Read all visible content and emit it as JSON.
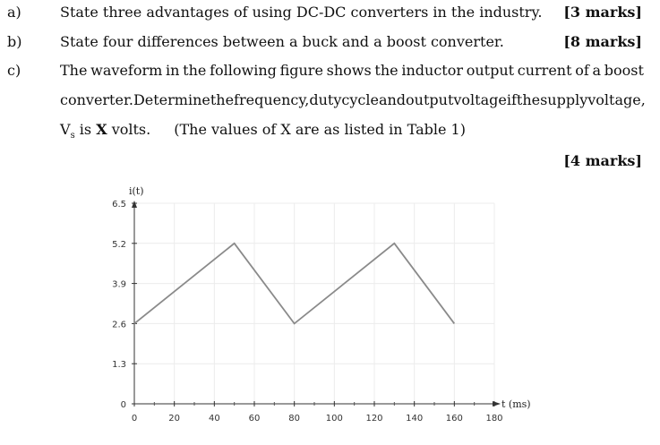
{
  "questions": [
    {
      "label": "a)",
      "text": "State three advantages of using DC-DC converters in the industry.",
      "marks": "[3 marks]"
    },
    {
      "label": "b)",
      "text": "State four differences between a buck and a boost converter.",
      "marks": "[8 marks]"
    },
    {
      "label": "c)",
      "line1": "The waveform in the following figure shows the inductor output current of a boost",
      "line2": "converter. Determine the frequency, duty cycle and output voltage if the supply voltage,",
      "line3_v": "V",
      "line3_sub": "s",
      "line3_is": " is ",
      "line3_x": "X",
      "line3_volts": " volts.",
      "line3_note": "(The values of X are as listed in Table 1)",
      "marks": "[4 marks]"
    }
  ],
  "chart_data": {
    "type": "line",
    "ylabel": "i(t)",
    "xlabel": "t (ms)",
    "x_ticks": [
      0,
      20,
      40,
      60,
      80,
      100,
      120,
      140,
      160,
      180
    ],
    "y_ticks": [
      0,
      1.3,
      2.6,
      3.9,
      5.2,
      6.5
    ],
    "xlim": [
      0,
      180
    ],
    "ylim": [
      0,
      6.5
    ],
    "grid": true,
    "series": [
      {
        "x": [
          0,
          50,
          80,
          130,
          160
        ],
        "y": [
          2.6,
          5.2,
          2.6,
          5.2,
          2.6
        ],
        "color": "#8a8a8a"
      }
    ]
  }
}
